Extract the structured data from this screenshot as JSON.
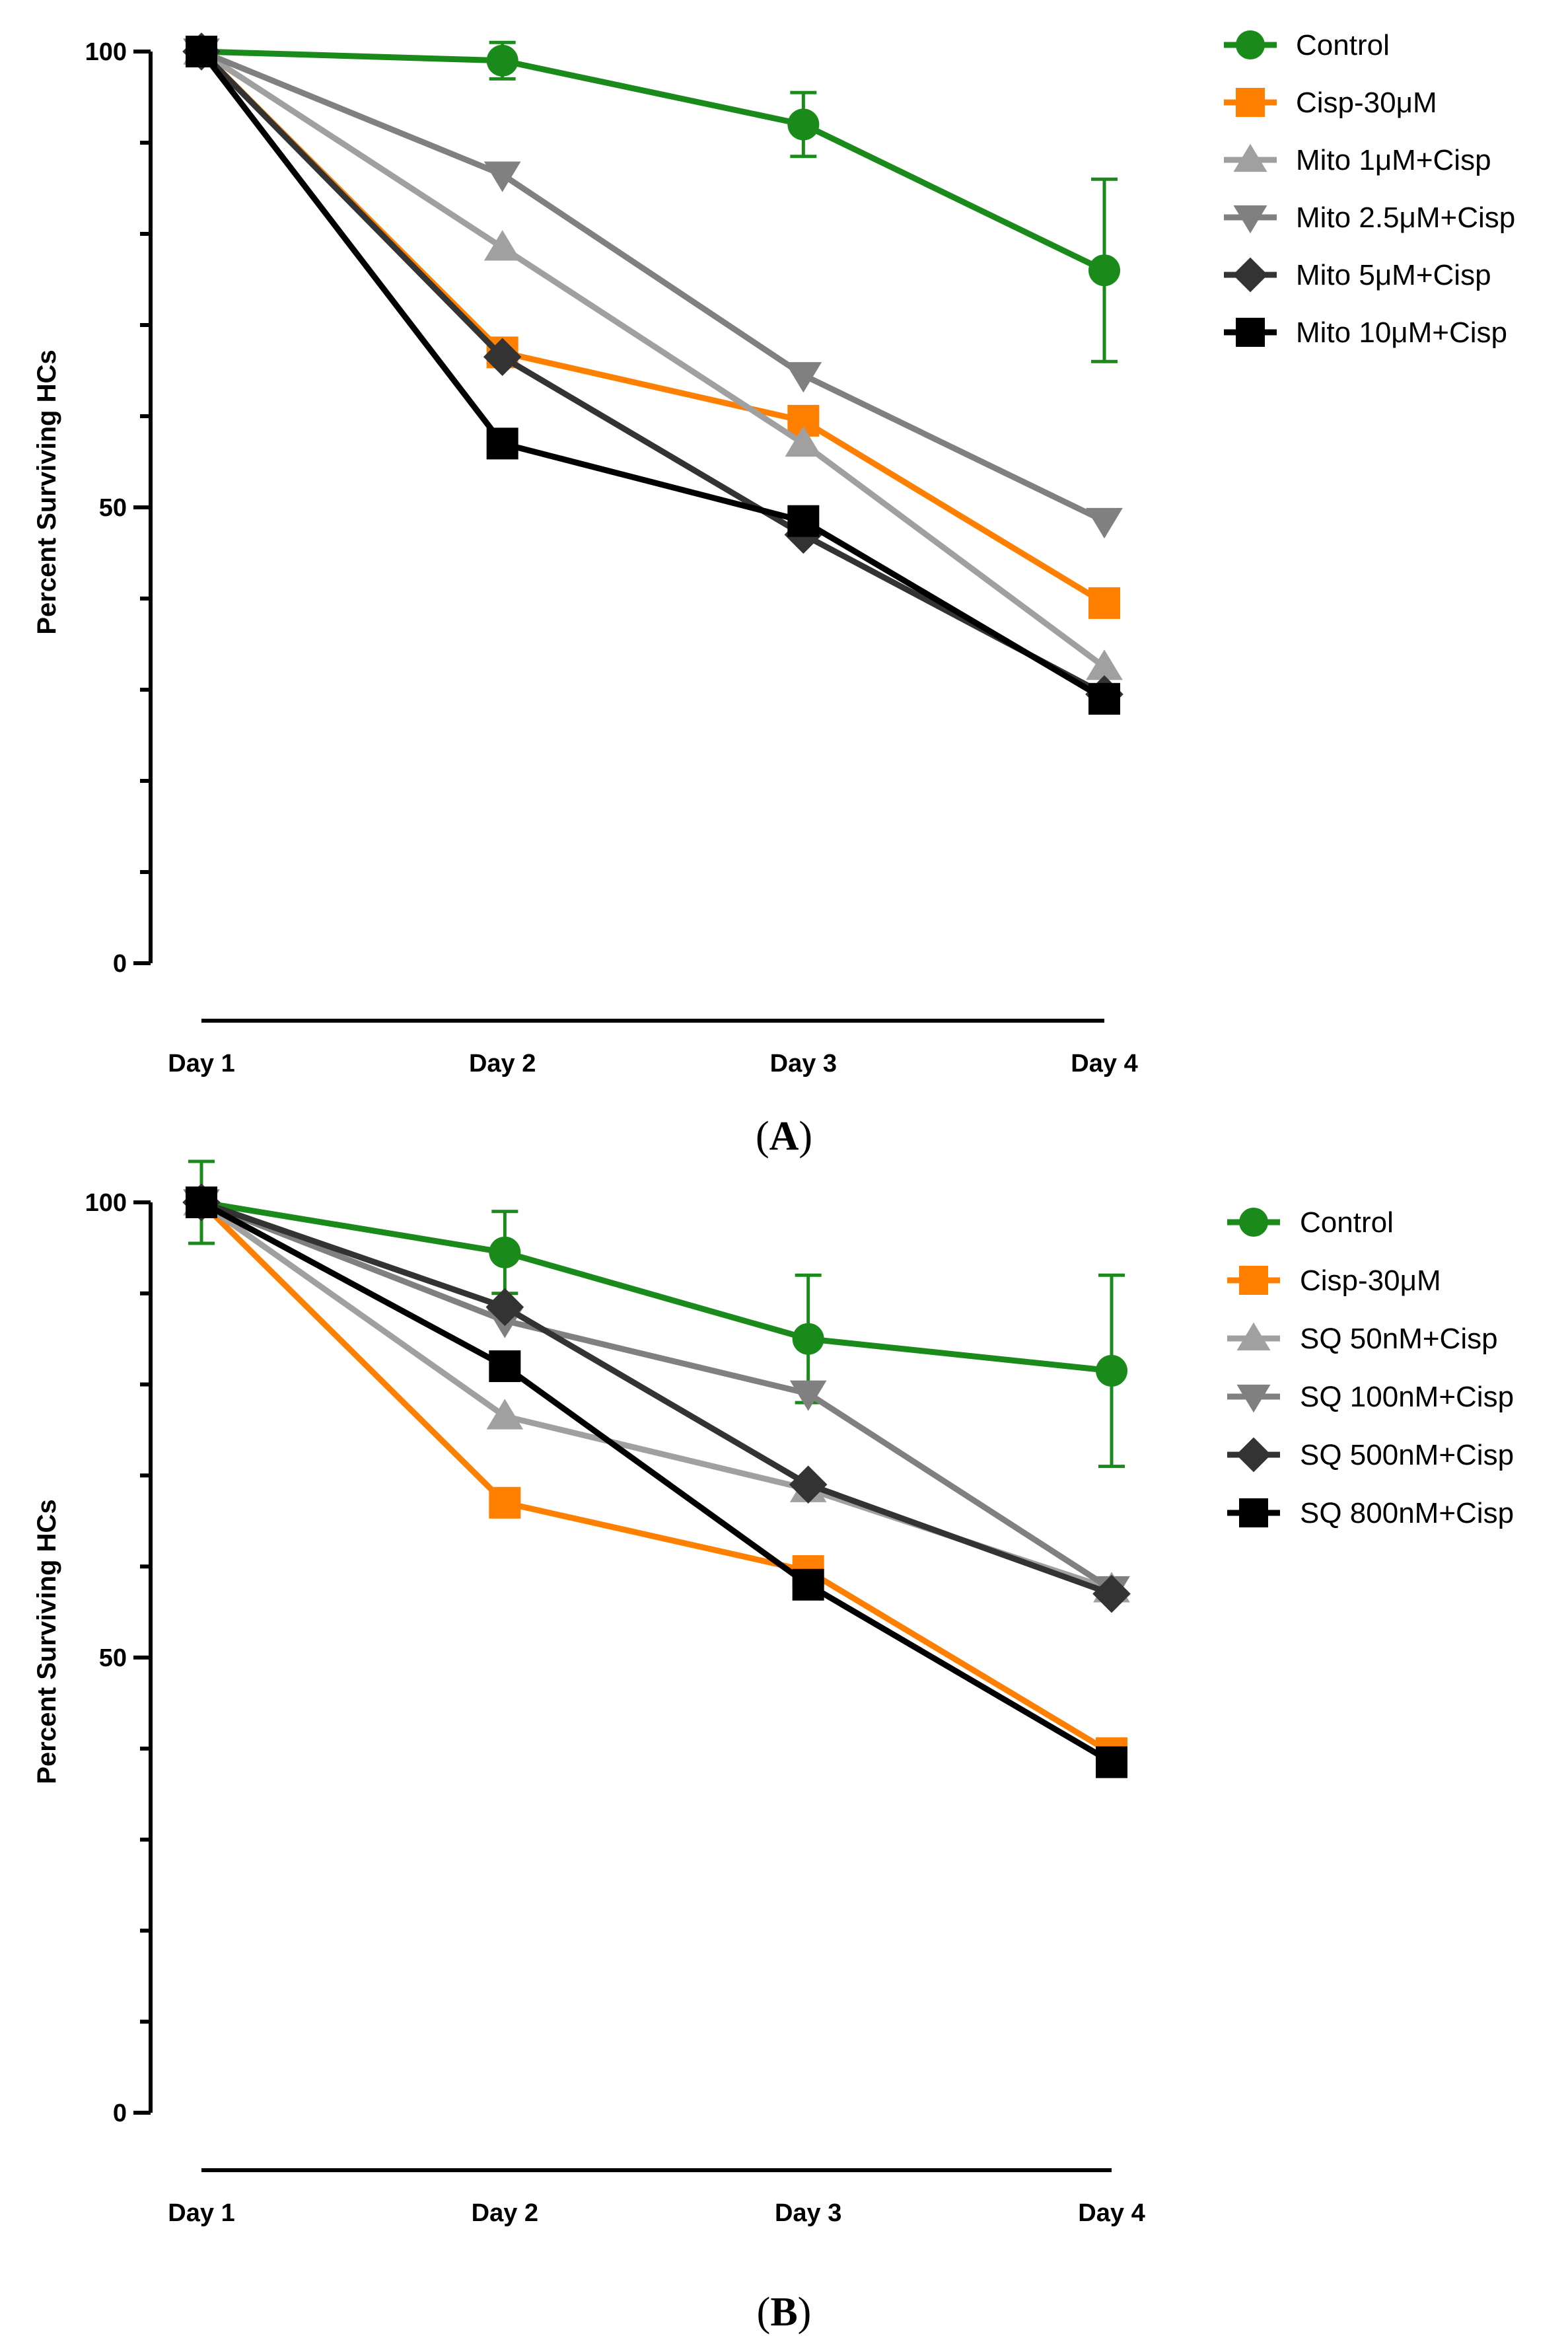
{
  "colors": {
    "control": "#1a8a1a",
    "cisp": "#ff8000",
    "light_gray": "#a0a0a0",
    "mid_gray": "#808080",
    "dark_gray": "#333333",
    "black": "#000000"
  },
  "chart_data": [
    {
      "type": "line",
      "panel_label": "A",
      "ylabel": "Percent Surviving HCs",
      "xlabel": "",
      "ylim": [
        0,
        100
      ],
      "yticks": [
        0,
        50,
        100
      ],
      "yticks_minor_step": 10,
      "categories": [
        "Day 1",
        "Day 2",
        "Day 3",
        "Day 4"
      ],
      "legend_position": "top-right",
      "series": [
        {
          "name": "Control",
          "marker": "circle",
          "color_key": "control",
          "values": [
            100,
            99,
            92,
            76
          ],
          "error": [
            0,
            2,
            3.5,
            10
          ]
        },
        {
          "name": "Cisp-30μM",
          "marker": "square",
          "color_key": "cisp",
          "values": [
            100,
            67,
            59.5,
            39.5
          ],
          "error": null
        },
        {
          "name": "Mito 1μM+Cisp",
          "marker": "triangle-up",
          "color_key": "light_gray",
          "values": [
            100,
            78.5,
            57,
            32.5
          ],
          "error": null
        },
        {
          "name": "Mito 2.5μM+Cisp",
          "marker": "triangle-down",
          "color_key": "mid_gray",
          "values": [
            100,
            86.5,
            64.5,
            48.5
          ],
          "error": null
        },
        {
          "name": "Mito 5μM+Cisp",
          "marker": "diamond",
          "color_key": "dark_gray",
          "values": [
            100,
            66.5,
            47,
            29.5
          ],
          "error": null
        },
        {
          "name": "Mito 10μM+Cisp",
          "marker": "square",
          "color_key": "black",
          "values": [
            100,
            57,
            48.5,
            29
          ],
          "error": null
        }
      ]
    },
    {
      "type": "line",
      "panel_label": "B",
      "ylabel": "Percent Surviving HCs",
      "xlabel": "",
      "ylim": [
        0,
        100
      ],
      "yticks": [
        0,
        50,
        100
      ],
      "yticks_minor_step": 10,
      "categories": [
        "Day 1",
        "Day 2",
        "Day 3",
        "Day 4"
      ],
      "legend_position": "top-right",
      "series": [
        {
          "name": "Control",
          "marker": "circle",
          "color_key": "control",
          "values": [
            100,
            94.5,
            85,
            81.5
          ],
          "error": [
            4.5,
            4.5,
            7,
            10.5
          ]
        },
        {
          "name": "Cisp-30μM",
          "marker": "square",
          "color_key": "cisp",
          "values": [
            100,
            67,
            59.5,
            39.5
          ],
          "error": null
        },
        {
          "name": "SQ 50nM+Cisp",
          "marker": "triangle-up",
          "color_key": "light_gray",
          "values": [
            100,
            76.5,
            68.5,
            57.5
          ],
          "error": null
        },
        {
          "name": "SQ 100nM+Cisp",
          "marker": "triangle-down",
          "color_key": "mid_gray",
          "values": [
            100,
            87,
            79,
            57.5
          ],
          "error": null
        },
        {
          "name": "SQ 500nM+Cisp",
          "marker": "diamond",
          "color_key": "dark_gray",
          "values": [
            100,
            88.5,
            69,
            57
          ],
          "error": null
        },
        {
          "name": "SQ 800nM+Cisp",
          "marker": "square",
          "color_key": "black",
          "values": [
            100,
            82,
            58,
            38.5
          ],
          "error": null
        }
      ]
    }
  ]
}
